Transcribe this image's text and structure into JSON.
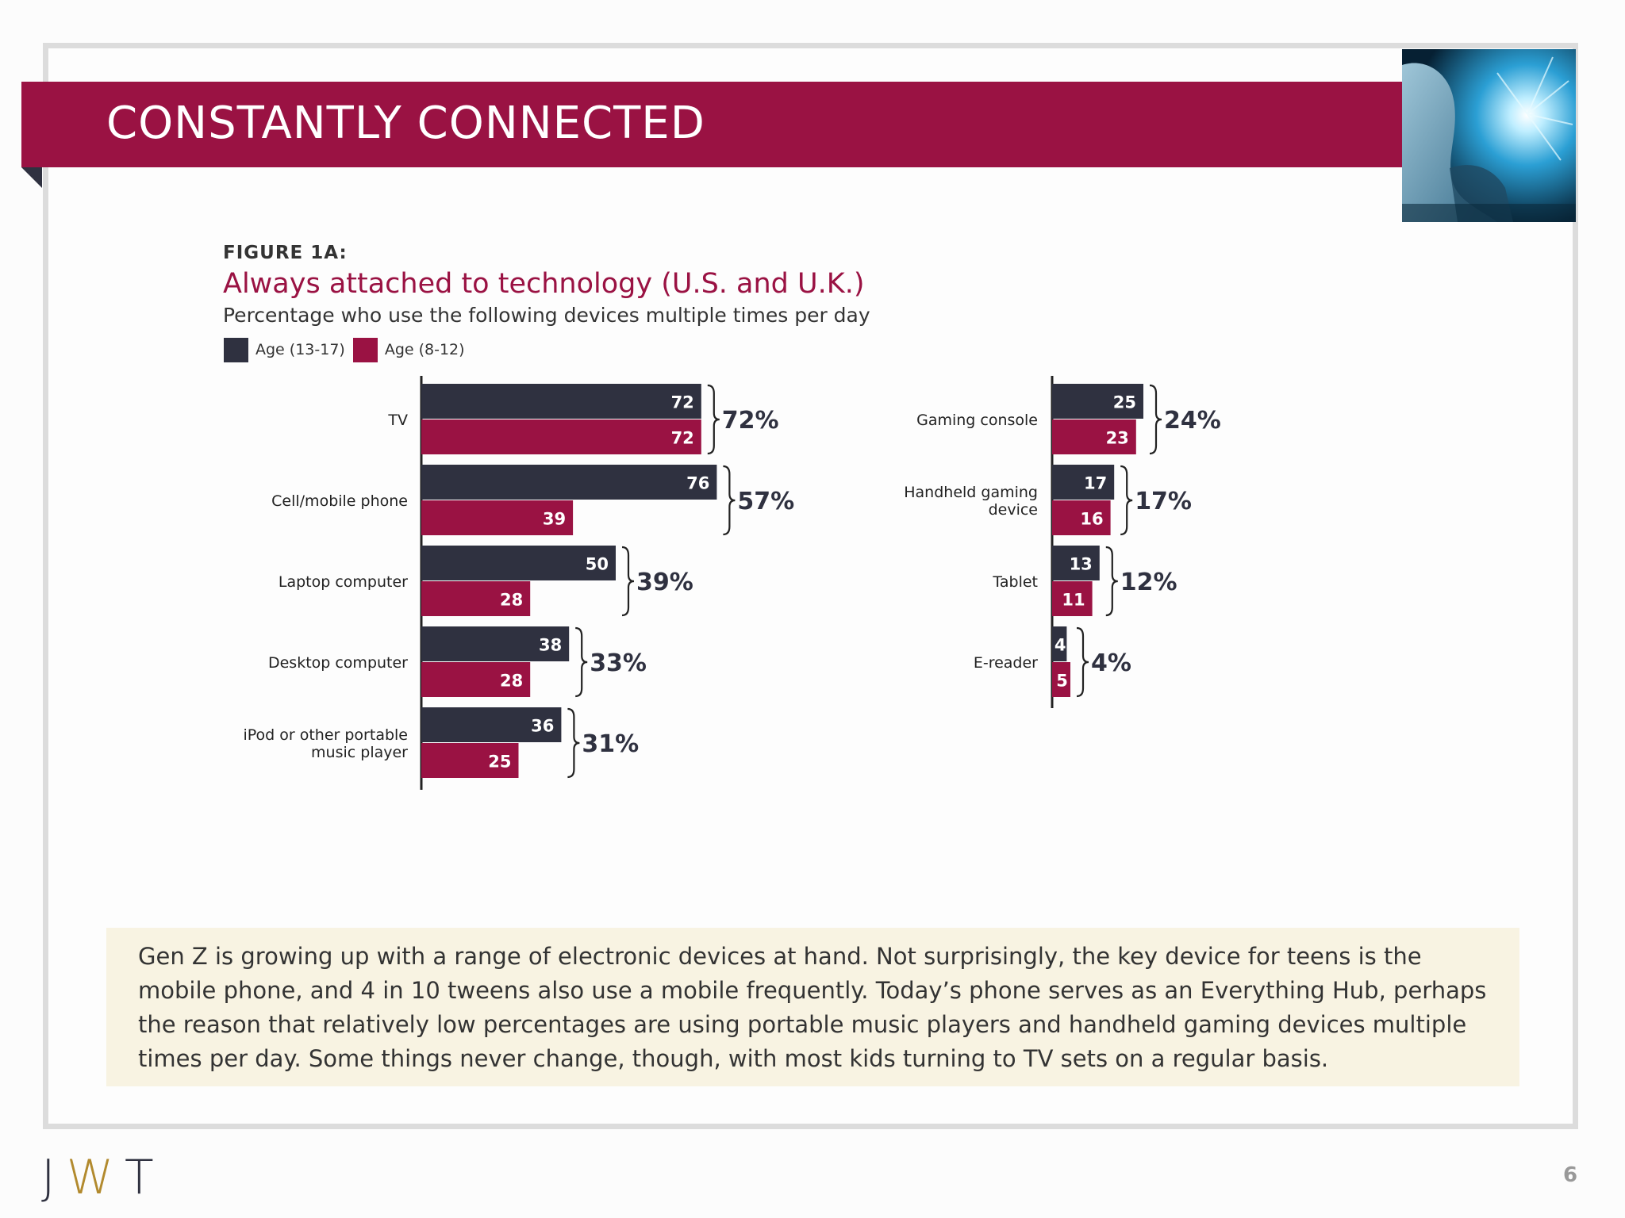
{
  "page": {
    "banner_title": "CONSTANTLY CONNECTED",
    "figure_label": "FIGURE 1A:",
    "figure_title": "Always attached to technology (U.S. and U.K.)",
    "figure_subtitle": "Percentage who use the following devices multiple times per day",
    "note": "Gen Z is growing up with a range of electronic devices at hand. Not surprisingly, the key device for teens is the mobile phone, and 4 in 10 tweens also use a mobile frequently. Today’s phone serves as an Everything Hub, perhaps the reason that relatively low percentages are using portable music players and handheld gaming devices multiple times per day. Some things never change, though, with most kids turning to TV sets on a regular basis.",
    "logo": {
      "j": "J",
      "w": "W",
      "t": "T"
    },
    "page_number": "6"
  },
  "colors": {
    "banner": "#9a1243",
    "teen": "#2f3140",
    "tween": "#9a1243"
  },
  "chart_data": [
    {
      "type": "bar",
      "orientation": "horizontal",
      "categories": [
        "TV",
        "Cell/mobile phone",
        "Laptop computer",
        "Desktop computer",
        "iPod or other portable music player"
      ],
      "series": [
        {
          "name": "Age (13-17)",
          "values": [
            72,
            76,
            50,
            38,
            36
          ]
        },
        {
          "name": "Age (8-12)",
          "values": [
            72,
            39,
            28,
            28,
            25
          ]
        }
      ],
      "totals": [
        "72%",
        "57%",
        "39%",
        "33%",
        "31%"
      ],
      "xlim": [
        0,
        100
      ],
      "grid": false,
      "legend": "top-left"
    },
    {
      "type": "bar",
      "orientation": "horizontal",
      "categories": [
        "Gaming console",
        "Handheld gaming device",
        "Tablet",
        "E-reader"
      ],
      "series": [
        {
          "name": "Age (13-17)",
          "values": [
            25,
            17,
            13,
            4
          ]
        },
        {
          "name": "Age (8-12)",
          "values": [
            23,
            16,
            11,
            5
          ]
        }
      ],
      "totals": [
        "24%",
        "17%",
        "12%",
        "4%"
      ],
      "xlim": [
        0,
        100
      ],
      "grid": false
    }
  ]
}
